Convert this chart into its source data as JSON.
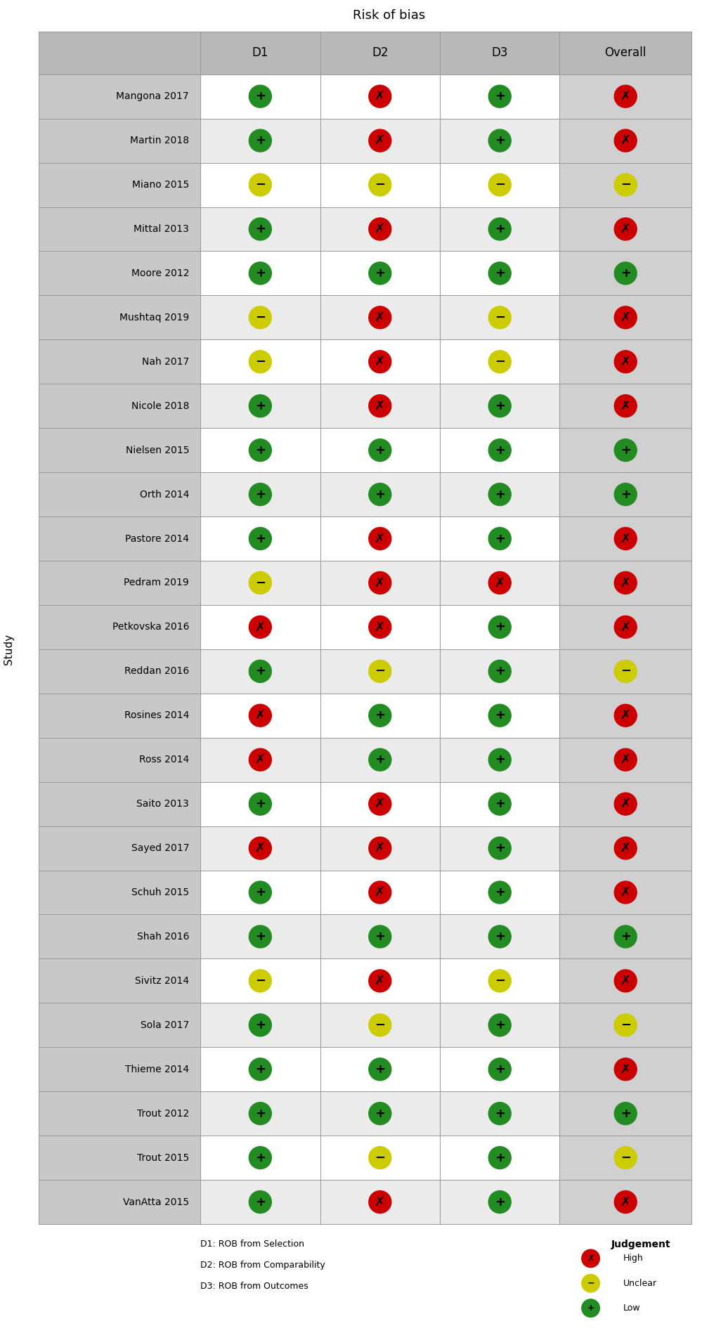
{
  "title": "Risk of bias",
  "ylabel": "Study",
  "columns": [
    "D1",
    "D2",
    "D3",
    "Overall"
  ],
  "studies": [
    "Mangona 2017",
    "Martin 2018",
    "Miano 2015",
    "Mittal 2013",
    "Moore 2012",
    "Mushtaq 2019",
    "Nah 2017",
    "Nicole 2018",
    "Nielsen 2015",
    "Orth 2014",
    "Pastore 2014",
    "Pedram 2019",
    "Petkovska 2016",
    "Reddan 2016",
    "Rosines 2014",
    "Ross 2014",
    "Saito 2013",
    "Sayed 2017",
    "Schuh 2015",
    "Shah 2016",
    "Sivitz 2014",
    "Sola 2017",
    "Thieme 2014",
    "Trout 2012",
    "Trout 2015",
    "VanAtta 2015"
  ],
  "data": {
    "Mangona 2017": [
      "L",
      "H",
      "L",
      "H"
    ],
    "Martin 2018": [
      "L",
      "H",
      "L",
      "H"
    ],
    "Miano 2015": [
      "U",
      "U",
      "U",
      "U"
    ],
    "Mittal 2013": [
      "L",
      "H",
      "L",
      "H"
    ],
    "Moore 2012": [
      "L",
      "L",
      "L",
      "L"
    ],
    "Mushtaq 2019": [
      "U",
      "H",
      "U",
      "H"
    ],
    "Nah 2017": [
      "U",
      "H",
      "U",
      "H"
    ],
    "Nicole 2018": [
      "L",
      "H",
      "L",
      "H"
    ],
    "Nielsen 2015": [
      "L",
      "L",
      "L",
      "L"
    ],
    "Orth 2014": [
      "L",
      "L",
      "L",
      "L"
    ],
    "Pastore 2014": [
      "L",
      "H",
      "L",
      "H"
    ],
    "Pedram 2019": [
      "U",
      "H",
      "H",
      "H"
    ],
    "Petkovska 2016": [
      "H",
      "H",
      "L",
      "H"
    ],
    "Reddan 2016": [
      "L",
      "U",
      "L",
      "U"
    ],
    "Rosines 2014": [
      "H",
      "L",
      "L",
      "H"
    ],
    "Ross 2014": [
      "H",
      "L",
      "L",
      "H"
    ],
    "Saito 2013": [
      "L",
      "H",
      "L",
      "H"
    ],
    "Sayed 2017": [
      "H",
      "H",
      "L",
      "H"
    ],
    "Schuh 2015": [
      "L",
      "H",
      "L",
      "H"
    ],
    "Shah 2016": [
      "L",
      "L",
      "L",
      "L"
    ],
    "Sivitz 2014": [
      "U",
      "H",
      "U",
      "H"
    ],
    "Sola 2017": [
      "L",
      "U",
      "L",
      "U"
    ],
    "Thieme 2014": [
      "L",
      "L",
      "L",
      "H"
    ],
    "Trout 2012": [
      "L",
      "L",
      "L",
      "L"
    ],
    "Trout 2015": [
      "L",
      "U",
      "L",
      "U"
    ],
    "VanAtta 2015": [
      "L",
      "H",
      "L",
      "H"
    ]
  },
  "color_map": {
    "H": "#cc0000",
    "U": "#cccc00",
    "L": "#228B22"
  },
  "symbol_map": {
    "H": "✗",
    "U": "−",
    "L": "+"
  },
  "footnotes": [
    "D1: ROB from Selection",
    "D2: ROB from Comparability",
    "D3: ROB from Outcomes"
  ],
  "legend_title": "Judgement",
  "legend_items": [
    {
      "label": "High",
      "color": "#cc0000",
      "key": "H"
    },
    {
      "label": "Unclear",
      "color": "#cccc00",
      "key": "U"
    },
    {
      "label": "Low",
      "color": "#228B22",
      "key": "L"
    }
  ],
  "header_bg": "#b8b8b8",
  "row_bg_white": "#ffffff",
  "row_bg_gray": "#ebebeb",
  "overall_bg": "#d0d0d0",
  "study_bg": "#c8c8c8",
  "border_color": "#999999",
  "fig_bg": "#ffffff",
  "title_fontsize": 13,
  "header_fontsize": 12,
  "study_fontsize": 10,
  "symbol_fontsize": 13,
  "footnote_fontsize": 9,
  "legend_fontsize": 9,
  "figsize": [
    10.09,
    18.97
  ],
  "dpi": 100
}
